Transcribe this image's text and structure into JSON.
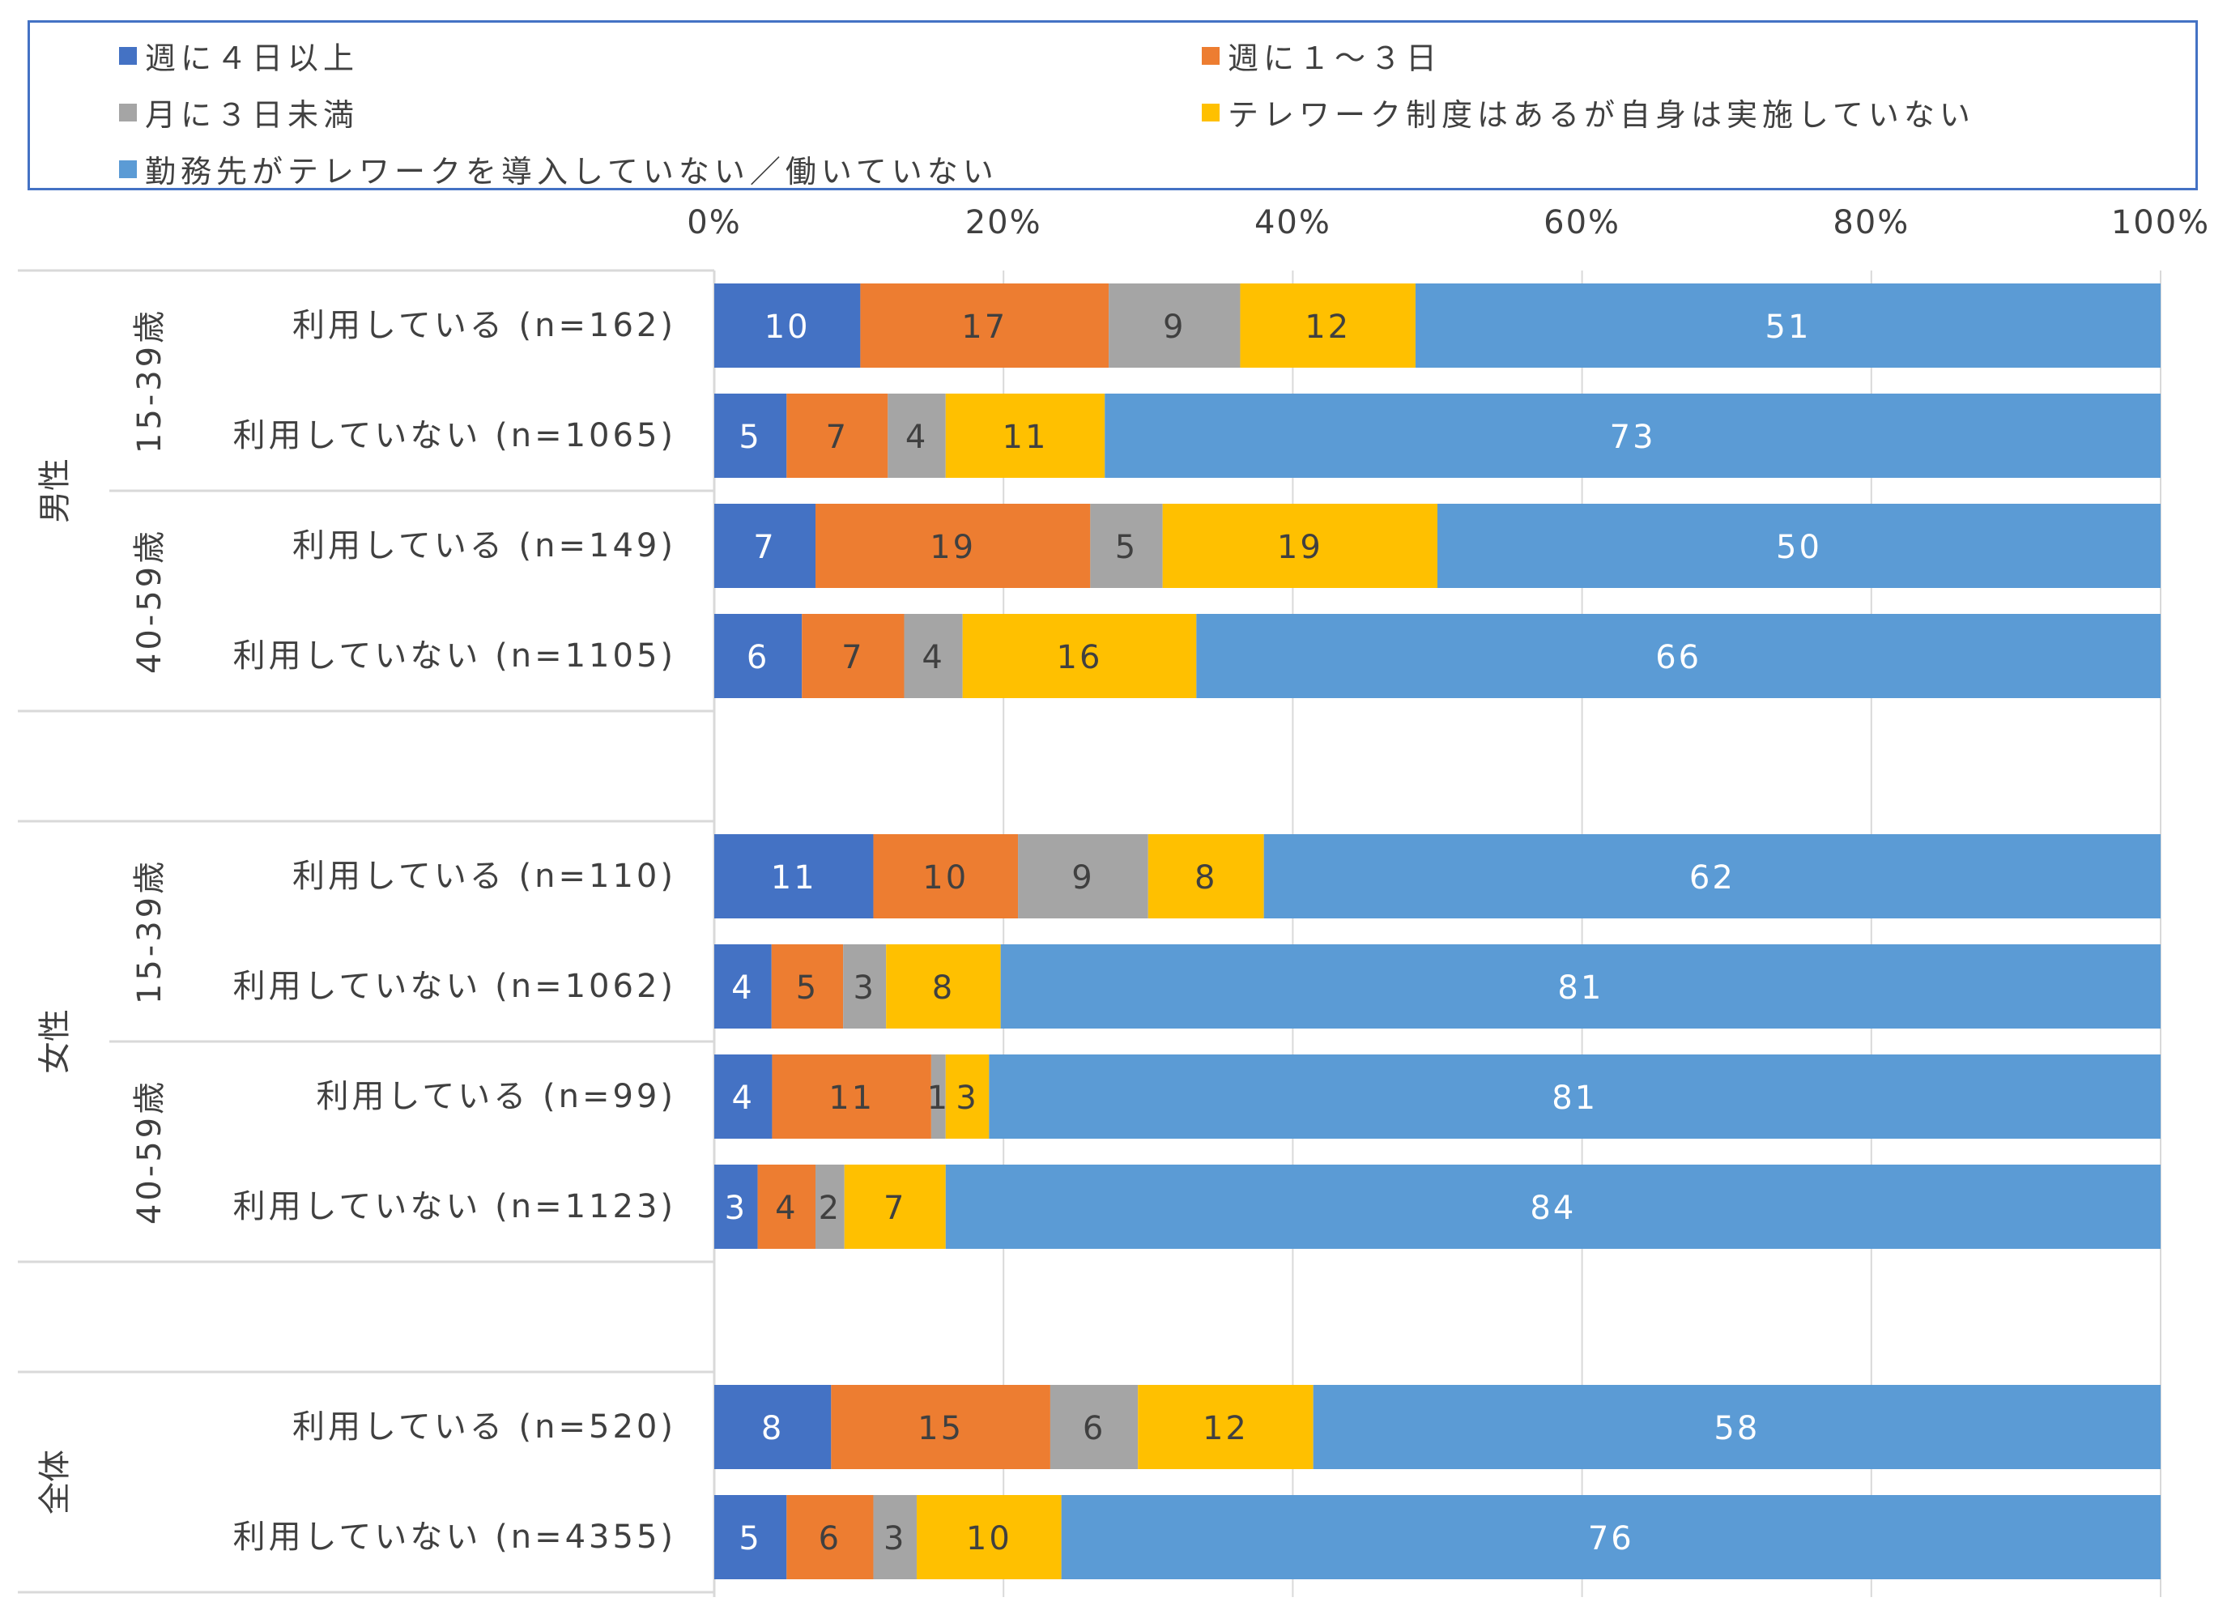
{
  "colors": {
    "series": [
      "#4472C4",
      "#ED7D31",
      "#A5A5A5",
      "#FFC000",
      "#5B9BD5"
    ],
    "grid": "#D9D9D9",
    "table_line": "#D9D9D9",
    "label_text": "#404040",
    "label_text_on_dark": "#FFFFFF",
    "legend_border": "#4472C4"
  },
  "chart_data": {
    "type": "bar",
    "orientation": "horizontal",
    "stacked": "percent",
    "legend_position": "top",
    "grid": true,
    "xlim": [
      0,
      100
    ],
    "x_ticks": [
      "0%",
      "20%",
      "40%",
      "60%",
      "80%",
      "100%"
    ],
    "groups": [
      {
        "label": "男性",
        "subgroups": [
          {
            "label": "15-39歳",
            "rows": [
              0,
              1
            ]
          },
          {
            "label": "40-59歳",
            "rows": [
              2,
              3
            ]
          }
        ]
      },
      {
        "label": "女性",
        "subgroups": [
          {
            "label": "15-39歳",
            "rows": [
              4,
              5
            ]
          },
          {
            "label": "40-59歳",
            "rows": [
              6,
              7
            ]
          }
        ]
      },
      {
        "label": "全体",
        "subgroups": [
          {
            "label": "",
            "rows": [
              8,
              9
            ]
          }
        ]
      }
    ],
    "categories": [
      "利用している (n=162)",
      "利用していない (n=1065)",
      "利用している (n=149)",
      "利用していない (n=1105)",
      "利用している (n=110)",
      "利用していない (n=1062)",
      "利用している (n=99)",
      "利用していない (n=1123)",
      "利用している (n=520)",
      "利用していない (n=4355)"
    ],
    "series": [
      {
        "name": "週に４日以上",
        "values": [
          10,
          5,
          7,
          6,
          11,
          4,
          4,
          3,
          8,
          5
        ]
      },
      {
        "name": "週に１～３日",
        "values": [
          17,
          7,
          19,
          7,
          10,
          5,
          11,
          4,
          15,
          6
        ]
      },
      {
        "name": "月に３日未満",
        "values": [
          9,
          4,
          5,
          4,
          9,
          3,
          1,
          2,
          6,
          3
        ]
      },
      {
        "name": "テレワーク制度はあるが自身は実施していない",
        "values": [
          12,
          11,
          19,
          16,
          8,
          8,
          3,
          7,
          12,
          10
        ]
      },
      {
        "name": "勤務先がテレワークを導入していない／働いていない",
        "values": [
          51,
          73,
          50,
          66,
          62,
          81,
          81,
          84,
          58,
          76
        ]
      }
    ]
  }
}
